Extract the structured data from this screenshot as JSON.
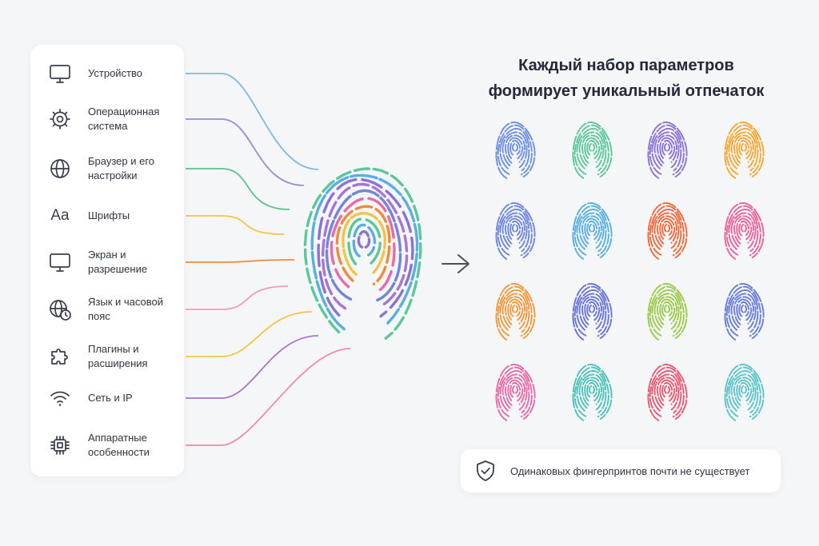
{
  "parameters": [
    {
      "label": "Устройство",
      "icon": "monitor-icon"
    },
    {
      "label": "Операционная\nсистема",
      "icon": "gear-icon"
    },
    {
      "label": "Браузер и его\nнастройки",
      "icon": "globe-icon"
    },
    {
      "label": "Шрифты",
      "icon": "font-icon",
      "glyph": "Aa"
    },
    {
      "label": "Экран и\nразрешение",
      "icon": "screen-icon"
    },
    {
      "label": "Язык и часовой\nпояс",
      "icon": "globe-clock-icon"
    },
    {
      "label": "Плагины и\nрасширения",
      "icon": "puzzle-icon"
    },
    {
      "label": "Сеть и IP",
      "icon": "wifi-icon"
    },
    {
      "label": "Аппаратные\nособенности",
      "icon": "chip-icon"
    }
  ],
  "link_colors": [
    "#7db8e8",
    "#9b8ad6",
    "#5fbf8f",
    "#f2c44a",
    "#f08a3c",
    "#f29bbd",
    "#f2c44a",
    "#a875d0",
    "#f28aa8"
  ],
  "title": "Каждый набор параметров\nформирует уникальный отпечаток",
  "grid_colors": [
    [
      "#6f8fe0",
      "#5ec79a",
      "#8b73d6",
      "#f2a838"
    ],
    [
      "#6f86d9",
      "#5aaee0",
      "#ee6a3e",
      "#e8649a"
    ],
    [
      "#ef9a3e",
      "#6a74d6",
      "#9cca4a",
      "#6a7ed8"
    ],
    [
      "#e86aa8",
      "#4fc1b8",
      "#e85a72",
      "#5fc4c8"
    ]
  ],
  "center_palette": [
    "#8b73d6",
    "#5aaee0",
    "#5ec79a",
    "#f2c44a",
    "#f08a3c",
    "#e86aa8",
    "#6f86d9",
    "#a875d0"
  ],
  "arrow_icon": "arrow-right-icon",
  "note": {
    "text": "Одинаковых фингерпринтов почти не существует",
    "icon": "shield-check-icon"
  }
}
